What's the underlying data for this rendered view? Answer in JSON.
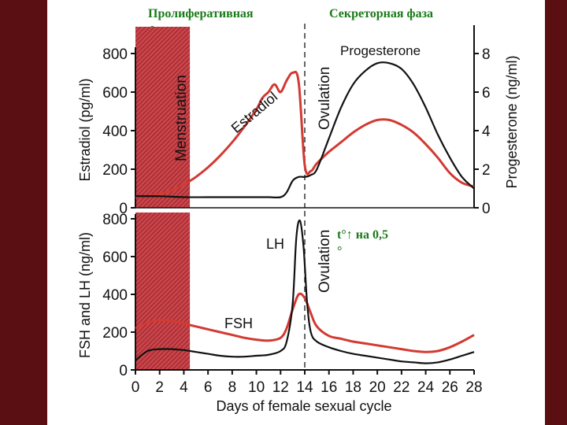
{
  "slide": {
    "phase_left": "Пролиферативная фаза",
    "phase_right": "Секреторная фаза",
    "temp_note": "t°↑ на 0,5 °",
    "colors": {
      "background": "#5a0f12",
      "red": "#d23a32",
      "black": "#111111",
      "hatch": "#b0282e"
    }
  },
  "chart_data": [
    {
      "type": "line",
      "xlabel": "Days of female sexual cycle",
      "xlim": [
        0,
        28
      ],
      "ylabel": "Estradiol (pg/ml)",
      "ylim": [
        0,
        800
      ],
      "y_ticks": [
        "0",
        "200",
        "400",
        "600",
        "800"
      ],
      "y2label": "Progesterone (ng/ml)",
      "y2lim": [
        0,
        8
      ],
      "y2_ticks": [
        "0",
        "2",
        "4",
        "6",
        "8"
      ],
      "annotations": {
        "menstruation": "Menstruation",
        "ovulation": "Ovulation"
      },
      "menstruation_days": [
        0,
        4.5
      ],
      "ovulation_day": 14,
      "series": [
        {
          "name": "Estradiol",
          "axis": "left",
          "color": "#d23a32",
          "x": [
            0,
            1,
            2,
            3,
            4,
            5,
            6,
            7,
            8,
            9,
            10,
            10.5,
            11,
            11.5,
            12,
            12.5,
            13,
            13.5,
            14,
            14.5,
            15,
            16,
            17,
            18,
            19,
            20,
            21,
            22,
            23,
            24,
            25,
            26,
            27,
            28
          ],
          "values": [
            55,
            60,
            70,
            90,
            120,
            160,
            210,
            270,
            340,
            420,
            510,
            570,
            600,
            640,
            600,
            660,
            700,
            650,
            220,
            190,
            230,
            290,
            340,
            390,
            430,
            455,
            455,
            430,
            390,
            330,
            260,
            180,
            130,
            110
          ]
        },
        {
          "name": "Progesterone",
          "axis": "right",
          "color": "#111111",
          "x": [
            0,
            2,
            4,
            6,
            8,
            10,
            11,
            12,
            12.5,
            13,
            13.5,
            14,
            14.5,
            15,
            16,
            17,
            18,
            19,
            20,
            21,
            22,
            23,
            24,
            25,
            26,
            27,
            28
          ],
          "values": [
            0.6,
            0.6,
            0.55,
            0.55,
            0.55,
            0.55,
            0.55,
            0.55,
            0.8,
            1.4,
            1.6,
            1.6,
            1.7,
            2.0,
            3.6,
            5.2,
            6.4,
            7.1,
            7.5,
            7.5,
            7.2,
            6.4,
            5.2,
            3.8,
            2.6,
            1.6,
            1.0
          ]
        }
      ]
    },
    {
      "type": "line",
      "xlabel": "Days of female sexual cycle",
      "xlim": [
        0,
        28
      ],
      "x_ticks": [
        "0",
        "2",
        "4",
        "6",
        "8",
        "10",
        "12",
        "14",
        "16",
        "18",
        "20",
        "22",
        "24",
        "26",
        "28"
      ],
      "ylabel": "FSH and LH (ng/ml)",
      "ylim": [
        0,
        800
      ],
      "y_ticks": [
        "0",
        "200",
        "400",
        "600",
        "800"
      ],
      "annotations": {
        "ovulation": "Ovulation",
        "lh_label": "LH",
        "fsh_label": "FSH"
      },
      "menstruation_days": [
        0,
        4.5
      ],
      "ovulation_day": 14,
      "series": [
        {
          "name": "FSH",
          "color": "#d23a32",
          "x": [
            0,
            1,
            2,
            3,
            4,
            5,
            6,
            7,
            8,
            9,
            10,
            11,
            12,
            12.5,
            13,
            13.5,
            14,
            14.5,
            15,
            16,
            17,
            18,
            19,
            20,
            21,
            22,
            23,
            24,
            25,
            26,
            27,
            28
          ],
          "values": [
            220,
            250,
            265,
            260,
            245,
            230,
            215,
            200,
            185,
            170,
            160,
            155,
            170,
            220,
            320,
            400,
            380,
            300,
            230,
            180,
            165,
            150,
            140,
            130,
            120,
            110,
            100,
            95,
            100,
            120,
            150,
            185
          ]
        },
        {
          "name": "LH",
          "color": "#111111",
          "x": [
            0,
            1,
            2,
            3,
            4,
            5,
            6,
            7,
            8,
            9,
            10,
            11,
            12,
            12.5,
            13,
            13.3,
            13.6,
            13.9,
            14.2,
            14.5,
            15,
            16,
            17,
            18,
            19,
            20,
            21,
            22,
            23,
            24,
            25,
            26,
            27,
            28
          ],
          "values": [
            50,
            100,
            110,
            110,
            105,
            95,
            85,
            75,
            70,
            70,
            75,
            80,
            100,
            150,
            350,
            700,
            790,
            650,
            350,
            200,
            150,
            120,
            100,
            85,
            75,
            65,
            55,
            45,
            40,
            35,
            40,
            55,
            75,
            95
          ]
        }
      ]
    }
  ]
}
